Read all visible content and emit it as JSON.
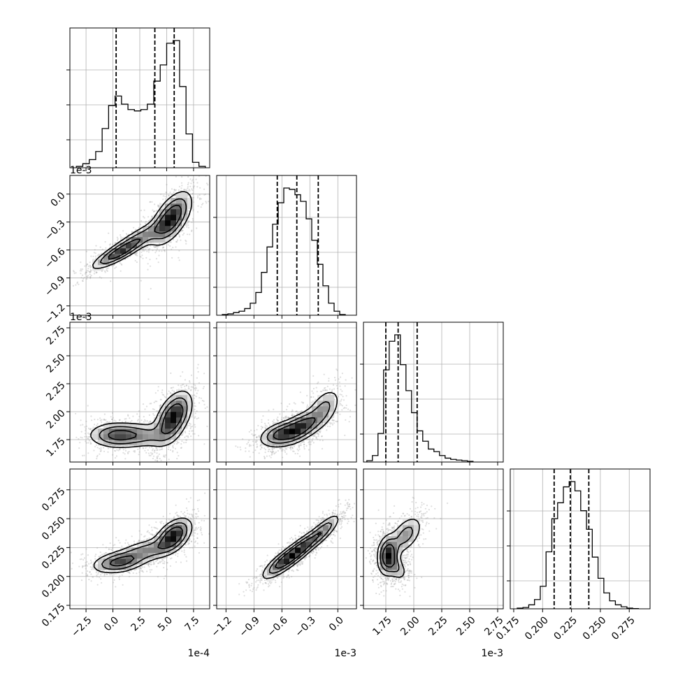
{
  "chart_data": {
    "type": "corner",
    "grid": true,
    "parameters": [
      {
        "range": [
          -4.0,
          9.0
        ],
        "offset_text": "1e-4",
        "ticks": [
          -2.5,
          0.0,
          2.5,
          5.0,
          7.5
        ],
        "tick_labels": [
          "−2.5",
          "0.0",
          "2.5",
          "5.0",
          "7.5"
        ],
        "quantiles": [
          0.3,
          3.9,
          5.7
        ],
        "histogram": {
          "bin_edges": [
            -3.4,
            -2.8,
            -2.2,
            -1.6,
            -1.0,
            -0.4,
            0.2,
            0.8,
            1.4,
            2.0,
            2.6,
            3.2,
            3.8,
            4.4,
            5.0,
            5.6,
            6.2,
            6.8,
            7.4,
            8.0,
            8.6
          ],
          "counts": [
            0.01,
            0.03,
            0.06,
            0.12,
            0.29,
            0.46,
            0.53,
            0.47,
            0.43,
            0.42,
            0.43,
            0.47,
            0.64,
            0.76,
            0.92,
            0.94,
            0.6,
            0.25,
            0.04,
            0.01
          ]
        }
      },
      {
        "range": [
          -1.3,
          0.2
        ],
        "offset_text": "1e-3",
        "ticks": [
          -1.2,
          -0.9,
          -0.6,
          -0.3,
          0.0
        ],
        "tick_labels": [
          "−1.2",
          "−0.9",
          "−0.6",
          "−0.3",
          "0.0"
        ],
        "quantiles": [
          -0.65,
          -0.44,
          -0.21
        ],
        "histogram": {
          "bin_edges": [
            -1.24,
            -1.18,
            -1.12,
            -1.06,
            -1.0,
            -0.94,
            -0.88,
            -0.82,
            -0.76,
            -0.7,
            -0.64,
            -0.58,
            -0.52,
            -0.46,
            -0.4,
            -0.34,
            -0.28,
            -0.22,
            -0.16,
            -0.1,
            -0.04,
            0.02,
            0.08
          ],
          "counts": [
            0.005,
            0.01,
            0.02,
            0.03,
            0.05,
            0.09,
            0.17,
            0.32,
            0.51,
            0.68,
            0.84,
            0.95,
            0.94,
            0.9,
            0.85,
            0.72,
            0.56,
            0.38,
            0.22,
            0.09,
            0.03,
            0.005
          ]
        }
      },
      {
        "range": [
          1.55,
          2.8
        ],
        "offset_text": "1e-3",
        "ticks": [
          1.75,
          2.0,
          2.25,
          2.5,
          2.75
        ],
        "tick_labels": [
          "1.75",
          "2.00",
          "2.25",
          "2.50",
          "2.75"
        ],
        "quantiles": [
          1.75,
          1.86,
          2.03
        ],
        "histogram": {
          "bin_edges": [
            1.58,
            1.63,
            1.68,
            1.73,
            1.78,
            1.83,
            1.88,
            1.93,
            1.98,
            2.03,
            2.08,
            2.13,
            2.18,
            2.23,
            2.28,
            2.33,
            2.38,
            2.43,
            2.48,
            2.53
          ],
          "counts": [
            0.01,
            0.05,
            0.22,
            0.71,
            0.93,
            0.98,
            0.75,
            0.55,
            0.38,
            0.24,
            0.16,
            0.1,
            0.08,
            0.05,
            0.03,
            0.02,
            0.015,
            0.01,
            0.005
          ]
        }
      },
      {
        "range": [
          0.172,
          0.293
        ],
        "offset_text": "",
        "ticks": [
          0.175,
          0.2,
          0.225,
          0.25,
          0.275
        ],
        "tick_labels": [
          "0.175",
          "0.200",
          "0.225",
          "0.250",
          "0.275"
        ],
        "quantiles": [
          0.21,
          0.224,
          0.24
        ],
        "histogram": {
          "bin_edges": [
            0.178,
            0.183,
            0.188,
            0.193,
            0.198,
            0.203,
            0.208,
            0.213,
            0.218,
            0.223,
            0.228,
            0.233,
            0.238,
            0.243,
            0.248,
            0.253,
            0.258,
            0.263,
            0.268,
            0.273,
            0.278,
            0.283
          ],
          "counts": [
            0.005,
            0.01,
            0.03,
            0.07,
            0.17,
            0.43,
            0.68,
            0.8,
            0.92,
            0.96,
            0.89,
            0.74,
            0.6,
            0.39,
            0.23,
            0.12,
            0.06,
            0.03,
            0.015,
            0.005,
            0.002
          ]
        }
      }
    ],
    "pair_panels": [
      {
        "x_param": 0,
        "y_param": 1,
        "density_peaks": [
          {
            "x": 0.4,
            "y": -0.64,
            "sx": 1.3,
            "sy": 0.09,
            "r": 0.85,
            "w": 0.7
          },
          {
            "x": 2.4,
            "y": -0.48,
            "sx": 1.6,
            "sy": 0.12,
            "r": 0.85,
            "w": 0.5
          },
          {
            "x": 5.4,
            "y": -0.26,
            "sx": 1.0,
            "sy": 0.15,
            "r": 0.6,
            "w": 1.0
          }
        ]
      },
      {
        "x_param": 0,
        "y_param": 2,
        "density_peaks": [
          {
            "x": 0.4,
            "y": 1.79,
            "sx": 1.4,
            "sy": 0.06,
            "r": 0.0,
            "w": 0.7
          },
          {
            "x": 3.0,
            "y": 1.79,
            "sx": 1.4,
            "sy": 0.06,
            "r": 0.0,
            "w": 0.35
          },
          {
            "x": 5.6,
            "y": 1.95,
            "sx": 0.9,
            "sy": 0.12,
            "r": 0.5,
            "w": 1.0
          }
        ]
      },
      {
        "x_param": 0,
        "y_param": 3,
        "density_peaks": [
          {
            "x": 0.5,
            "y": 0.212,
            "sx": 1.3,
            "sy": 0.005,
            "r": 0.3,
            "w": 0.7
          },
          {
            "x": 3.0,
            "y": 0.222,
            "sx": 1.5,
            "sy": 0.006,
            "r": 0.5,
            "w": 0.5
          },
          {
            "x": 5.6,
            "y": 0.235,
            "sx": 0.9,
            "sy": 0.008,
            "r": 0.5,
            "w": 1.0
          }
        ]
      },
      {
        "x_param": 1,
        "y_param": 2,
        "density_peaks": [
          {
            "x": -0.62,
            "y": 1.8,
            "sx": 0.12,
            "sy": 0.06,
            "r": 0.4,
            "w": 0.8
          },
          {
            "x": -0.4,
            "y": 1.86,
            "sx": 0.13,
            "sy": 0.08,
            "r": 0.6,
            "w": 1.0
          },
          {
            "x": -0.15,
            "y": 2.03,
            "sx": 0.1,
            "sy": 0.1,
            "r": 0.5,
            "w": 0.5
          }
        ]
      },
      {
        "x_param": 1,
        "y_param": 3,
        "density_peaks": [
          {
            "x": -0.6,
            "y": 0.212,
            "sx": 0.12,
            "sy": 0.008,
            "r": 0.8,
            "w": 0.8
          },
          {
            "x": -0.4,
            "y": 0.224,
            "sx": 0.13,
            "sy": 0.009,
            "r": 0.85,
            "w": 1.0
          },
          {
            "x": -0.15,
            "y": 0.24,
            "sx": 0.1,
            "sy": 0.008,
            "r": 0.8,
            "w": 0.6
          }
        ]
      },
      {
        "x_param": 2,
        "y_param": 3,
        "density_peaks": [
          {
            "x": 1.77,
            "y": 0.218,
            "sx": 0.05,
            "sy": 0.009,
            "r": 0.1,
            "w": 1.0
          },
          {
            "x": 1.93,
            "y": 0.236,
            "sx": 0.08,
            "sy": 0.009,
            "r": 0.5,
            "w": 0.5
          },
          {
            "x": 1.85,
            "y": 0.207,
            "sx": 0.05,
            "sy": 0.006,
            "r": -0.4,
            "w": 0.35
          }
        ]
      }
    ],
    "contour_levels": [
      0.15,
      0.35,
      0.6
    ],
    "scatter_color": "#a0a0a0",
    "line_color": "#000000",
    "grid_color": "#b0b0b0"
  }
}
